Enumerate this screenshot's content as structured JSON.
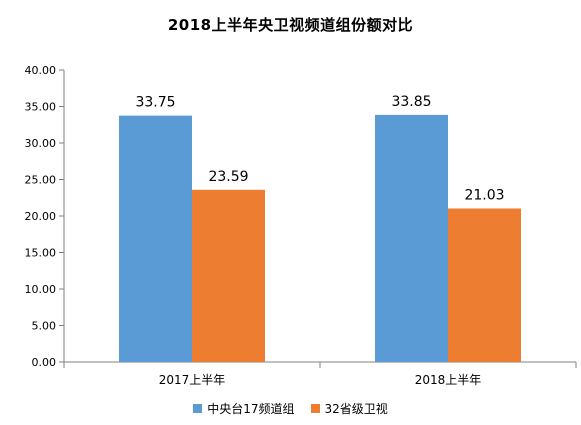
{
  "colors": {
    "series_1": "#5B9BD5",
    "series_2": "#ED7D31",
    "axis": "#808080"
  },
  "chart_data": {
    "type": "bar",
    "title": "2018上半年央卫视频道组份额对比",
    "xlabel": "",
    "ylabel": "",
    "categories": [
      "2017上半年",
      "2018上半年"
    ],
    "series": [
      {
        "name": "中央台17频道组",
        "values": [
          33.75,
          33.85
        ]
      },
      {
        "name": "32省级卫视",
        "values": [
          23.59,
          21.03
        ]
      }
    ],
    "value_labels": [
      [
        "33.75",
        "33.85"
      ],
      [
        "23.59",
        "21.03"
      ]
    ],
    "ylim": [
      0,
      40
    ],
    "yticks": [
      "0.00",
      "5.00",
      "10.00",
      "15.00",
      "20.00",
      "25.00",
      "30.00",
      "35.00",
      "40.00"
    ],
    "ytick_values": [
      0,
      5,
      10,
      15,
      20,
      25,
      30,
      35,
      40
    ],
    "grid": false,
    "legend_position": "bottom"
  }
}
